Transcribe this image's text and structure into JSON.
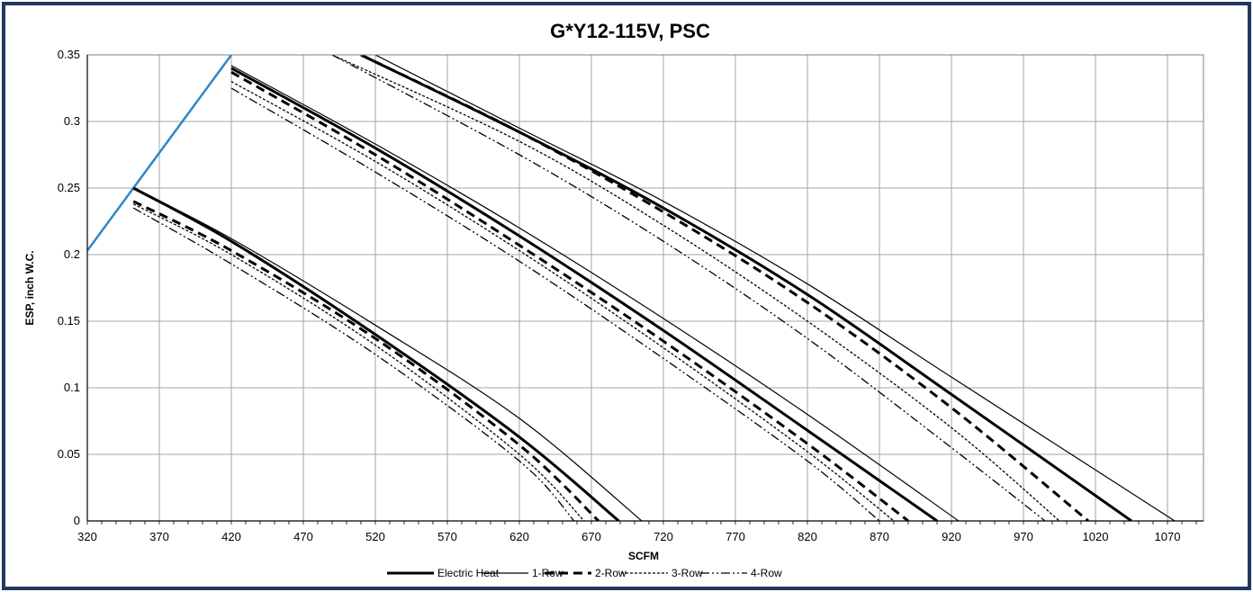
{
  "chart_data": {
    "type": "line",
    "title": "G*Y12-115V, PSC",
    "xlabel": "SCFM",
    "ylabel": "ESP, inch W.C.",
    "xlim": [
      320,
      1095
    ],
    "ylim": [
      0,
      0.35
    ],
    "x_ticks": [
      "320",
      "370",
      "420",
      "470",
      "520",
      "570",
      "620",
      "670",
      "720",
      "770",
      "820",
      "870",
      "920",
      "970",
      "1020",
      "1070"
    ],
    "y_ticks": [
      "0",
      "0.05",
      "0.1",
      "0.15",
      "0.2",
      "0.25",
      "0.3",
      "0.35"
    ],
    "grid": true,
    "legend_position": "bottom",
    "legend": [
      {
        "name": "Electric Heat",
        "style": "thick"
      },
      {
        "name": "1-Row",
        "style": "thin"
      },
      {
        "name": "2-Row",
        "style": "dashed"
      },
      {
        "name": "3-Row",
        "style": "dotted"
      },
      {
        "name": "4-Row",
        "style": "dashdotdot"
      }
    ],
    "limit_curve": {
      "color": "#2e86c8",
      "points": [
        [
          320,
          0.203
        ],
        [
          352,
          0.25
        ],
        [
          420,
          0.35
        ]
      ]
    },
    "speed_groups": [
      {
        "series": [
          {
            "name": "Electric Heat",
            "style": "thick",
            "points": [
              [
                352,
                0.25
              ],
              [
                420,
                0.21
              ],
              [
                520,
                0.14
              ],
              [
                620,
                0.063
              ],
              [
                689,
                0
              ]
            ]
          },
          {
            "name": "1-Row",
            "style": "thin",
            "points": [
              [
                352,
                0.25
              ],
              [
                420,
                0.212
              ],
              [
                520,
                0.147
              ],
              [
                620,
                0.077
              ],
              [
                705,
                0
              ]
            ]
          },
          {
            "name": "2-Row",
            "style": "dashed",
            "points": [
              [
                352,
                0.24
              ],
              [
                420,
                0.203
              ],
              [
                520,
                0.137
              ],
              [
                620,
                0.057
              ],
              [
                675,
                0
              ]
            ]
          },
          {
            "name": "3-Row",
            "style": "dotted",
            "points": [
              [
                352,
                0.238
              ],
              [
                420,
                0.2
              ],
              [
                520,
                0.132
              ],
              [
                620,
                0.05
              ],
              [
                665,
                0
              ]
            ]
          },
          {
            "name": "4-Row",
            "style": "dashdotdot",
            "points": [
              [
                352,
                0.235
              ],
              [
                420,
                0.193
              ],
              [
                520,
                0.125
              ],
              [
                620,
                0.045
              ],
              [
                658,
                0
              ]
            ]
          }
        ]
      },
      {
        "series": [
          {
            "name": "Electric Heat",
            "style": "thick",
            "points": [
              [
                420,
                0.34
              ],
              [
                520,
                0.28
              ],
              [
                620,
                0.214
              ],
              [
                720,
                0.143
              ],
              [
                820,
                0.068
              ],
              [
                910,
                0
              ]
            ]
          },
          {
            "name": "1-Row",
            "style": "thin",
            "points": [
              [
                420,
                0.342
              ],
              [
                520,
                0.283
              ],
              [
                620,
                0.22
              ],
              [
                720,
                0.152
              ],
              [
                820,
                0.08
              ],
              [
                925,
                0
              ]
            ]
          },
          {
            "name": "2-Row",
            "style": "dashed",
            "points": [
              [
                420,
                0.337
              ],
              [
                520,
                0.275
              ],
              [
                620,
                0.207
              ],
              [
                720,
                0.135
              ],
              [
                820,
                0.058
              ],
              [
                890,
                0
              ]
            ]
          },
          {
            "name": "3-Row",
            "style": "dotted",
            "points": [
              [
                420,
                0.33
              ],
              [
                520,
                0.27
              ],
              [
                620,
                0.203
              ],
              [
                720,
                0.13
              ],
              [
                820,
                0.052
              ],
              [
                880,
                0
              ]
            ]
          },
          {
            "name": "4-Row",
            "style": "dashdotdot",
            "points": [
              [
                420,
                0.325
              ],
              [
                520,
                0.262
              ],
              [
                620,
                0.195
              ],
              [
                720,
                0.122
              ],
              [
                820,
                0.045
              ],
              [
                870,
                0
              ]
            ]
          }
        ]
      },
      {
        "series": [
          {
            "name": "Electric Heat",
            "style": "thick",
            "points": [
              [
                510,
                0.35
              ],
              [
                620,
                0.292
              ],
              [
                720,
                0.235
              ],
              [
                820,
                0.17
              ],
              [
                920,
                0.095
              ],
              [
                1045,
                0
              ]
            ]
          },
          {
            "name": "1-Row",
            "style": "thin",
            "points": [
              [
                520,
                0.35
              ],
              [
                620,
                0.295
              ],
              [
                720,
                0.24
              ],
              [
                820,
                0.178
              ],
              [
                920,
                0.108
              ],
              [
                1075,
                0
              ]
            ]
          },
          {
            "name": "2-Row",
            "style": "dashed",
            "points": [
              [
                510,
                0.35
              ],
              [
                620,
                0.292
              ],
              [
                720,
                0.232
              ],
              [
                820,
                0.164
              ],
              [
                920,
                0.085
              ],
              [
                1015,
                0
              ]
            ]
          },
          {
            "name": "3-Row",
            "style": "dotted",
            "points": [
              [
                490,
                0.35
              ],
              [
                620,
                0.285
              ],
              [
                720,
                0.222
              ],
              [
                820,
                0.15
              ],
              [
                920,
                0.07
              ],
              [
                995,
                0
              ]
            ]
          },
          {
            "name": "4-Row",
            "style": "dashdotdot",
            "points": [
              [
                490,
                0.35
              ],
              [
                620,
                0.275
              ],
              [
                720,
                0.21
              ],
              [
                820,
                0.137
              ],
              [
                920,
                0.055
              ],
              [
                985,
                0
              ]
            ]
          }
        ]
      }
    ]
  }
}
